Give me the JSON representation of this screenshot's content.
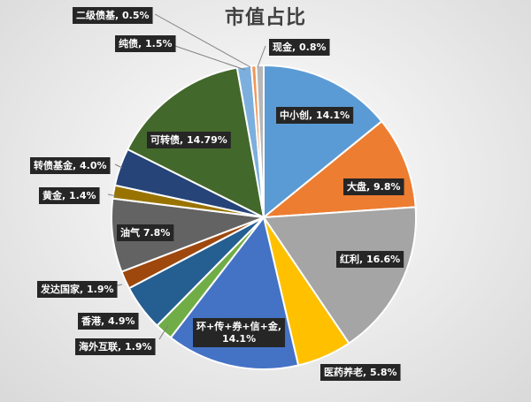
{
  "chart_data": {
    "type": "pie",
    "title": "市值占比",
    "slices": [
      {
        "name": "中小创",
        "value": 14.1,
        "label": "中小创, 14.1%",
        "color": "#5b9bd5"
      },
      {
        "name": "大盘",
        "value": 9.8,
        "label": "大盘, 9.8%",
        "color": "#ed7d31"
      },
      {
        "name": "红利",
        "value": 16.6,
        "label": "红利, 16.6%",
        "color": "#a5a5a5"
      },
      {
        "name": "医药养老",
        "value": 5.8,
        "label": "医药养老, 5.8%",
        "color": "#ffc000"
      },
      {
        "name": "环+传+券+信+金",
        "value": 14.1,
        "label": "环+传+券+信+金, 14.1%",
        "color": "#4472c4"
      },
      {
        "name": "海外互联",
        "value": 1.9,
        "label": "海外互联, 1.9%",
        "color": "#70ad47"
      },
      {
        "name": "香港",
        "value": 4.9,
        "label": "香港, 4.9%",
        "color": "#255e91"
      },
      {
        "name": "发达国家",
        "value": 1.9,
        "label": "发达国家, 1.9%",
        "color": "#9e480e"
      },
      {
        "name": "油气",
        "value": 7.8,
        "label": "油气 7.8%",
        "color": "#636363"
      },
      {
        "name": "黄金",
        "value": 1.4,
        "label": "黄金, 1.4%",
        "color": "#997300"
      },
      {
        "name": "转债基金",
        "value": 4.0,
        "label": "转债基金, 4.0%",
        "color": "#264478"
      },
      {
        "name": "可转债",
        "value": 14.79,
        "label": "可转债, 14.79%",
        "color": "#43682b"
      },
      {
        "name": "纯债",
        "value": 1.5,
        "label": "纯债, 1.5%",
        "color": "#7cafdd"
      },
      {
        "name": "二级债基",
        "value": 0.5,
        "label": "二级债基, 0.5%",
        "color": "#f1975a"
      },
      {
        "name": "现金",
        "value": 0.8,
        "label": "现金, 0.8%",
        "color": "#b7b7b7"
      }
    ],
    "legend": "none"
  }
}
